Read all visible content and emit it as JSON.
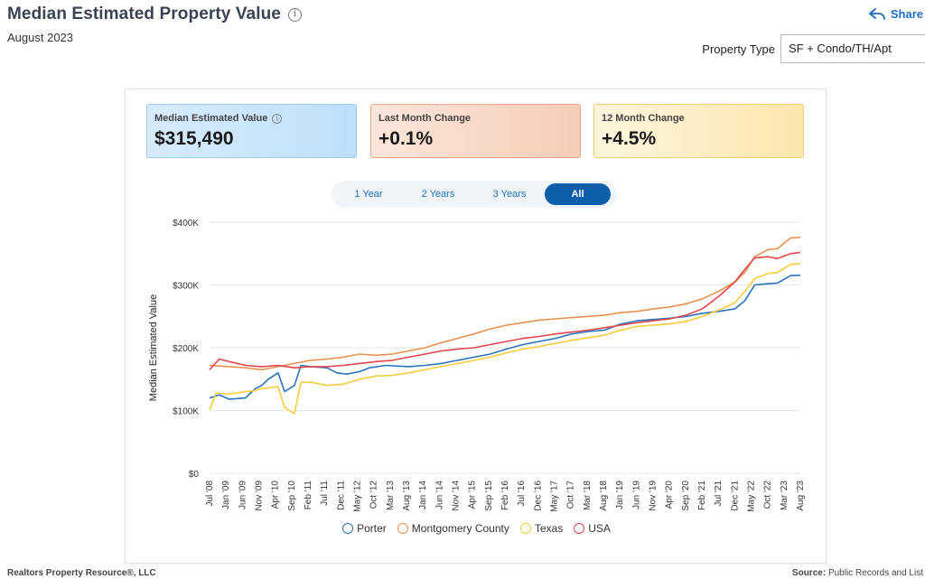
{
  "header": {
    "title": "Median Estimated Property Value",
    "subtitle": "August 2023",
    "share_label": "Share",
    "property_type_label": "Property Type",
    "property_type_value": "SF + Condo/TH/Apt"
  },
  "stats": {
    "median_label": "Median Estimated Value",
    "median_value": "$315,490",
    "last_month_label": "Last Month Change",
    "last_month_value": "+0.1%",
    "twelve_month_label": "12 Month Change",
    "twelve_month_value": "+4.5%"
  },
  "range_buttons": [
    "1 Year",
    "2 Years",
    "3 Years",
    "All"
  ],
  "range_selected": "All",
  "footer": {
    "left": "Realtors Property Resource®, LLC",
    "source_label": "Source:",
    "source_value": "Public Records and List"
  },
  "colors": {
    "Porter": "#2a74bd",
    "Montgomery County": "#e8914f",
    "Texas": "#f4cd3c",
    "USA": "#e2474b",
    "active_tab": "#0d5fab"
  },
  "chart_data": {
    "type": "line",
    "title": "",
    "xlabel": "",
    "ylabel": "Median Estimated Value",
    "ylim": [
      0,
      400000
    ],
    "yticks": [
      0,
      100000,
      200000,
      300000,
      400000
    ],
    "ytick_labels": [
      "$0",
      "$100K",
      "$200K",
      "$300K",
      "$400K"
    ],
    "x_start": "2008-07",
    "x_end": "2023-08",
    "xtick_labels": [
      "Jul '08",
      "Jan '09",
      "Jun '09",
      "Nov '09",
      "Apr '10",
      "Sep '10",
      "Feb '11",
      "Jul '11",
      "Dec '11",
      "May '12",
      "Oct '12",
      "Mar '13",
      "Aug '13",
      "Jan '14",
      "Jun '14",
      "Nov '14",
      "Apr '15",
      "Sep '15",
      "Feb '16",
      "Jul '16",
      "Dec '16",
      "May '17",
      "Oct '17",
      "Mar '18",
      "Aug '18",
      "Jan '19",
      "Jun '19",
      "Nov '19",
      "Apr '20",
      "Sep '20",
      "Feb '21",
      "Jul '21",
      "Dec '21",
      "May '22",
      "Oct '22",
      "Mar '23",
      "Aug '23"
    ],
    "grid": true,
    "legend_position": "bottom",
    "series": [
      {
        "name": "Porter",
        "points": [
          [
            "2008-07",
            120000
          ],
          [
            "2008-10",
            125000
          ],
          [
            "2009-01",
            118000
          ],
          [
            "2009-06",
            120000
          ],
          [
            "2009-09",
            135000
          ],
          [
            "2009-11",
            140000
          ],
          [
            "2010-01",
            150000
          ],
          [
            "2010-04",
            160000
          ],
          [
            "2010-06",
            130000
          ],
          [
            "2010-09",
            140000
          ],
          [
            "2010-11",
            172000
          ],
          [
            "2011-02",
            170000
          ],
          [
            "2011-07",
            168000
          ],
          [
            "2011-10",
            160000
          ],
          [
            "2012-01",
            158000
          ],
          [
            "2012-05",
            162000
          ],
          [
            "2012-08",
            168000
          ],
          [
            "2013-01",
            172000
          ],
          [
            "2013-08",
            170000
          ],
          [
            "2014-01",
            172000
          ],
          [
            "2014-06",
            175000
          ],
          [
            "2014-11",
            180000
          ],
          [
            "2015-04",
            185000
          ],
          [
            "2015-09",
            190000
          ],
          [
            "2016-02",
            198000
          ],
          [
            "2016-07",
            205000
          ],
          [
            "2016-12",
            210000
          ],
          [
            "2017-05",
            215000
          ],
          [
            "2017-10",
            222000
          ],
          [
            "2018-03",
            226000
          ],
          [
            "2018-08",
            228000
          ],
          [
            "2019-01",
            238000
          ],
          [
            "2019-06",
            243000
          ],
          [
            "2019-11",
            245000
          ],
          [
            "2020-04",
            247000
          ],
          [
            "2020-09",
            250000
          ],
          [
            "2021-02",
            255000
          ],
          [
            "2021-07",
            258000
          ],
          [
            "2021-12",
            262000
          ],
          [
            "2022-03",
            275000
          ],
          [
            "2022-06",
            300000
          ],
          [
            "2022-10",
            302000
          ],
          [
            "2023-01",
            303000
          ],
          [
            "2023-05",
            315000
          ],
          [
            "2023-08",
            315490
          ]
        ]
      },
      {
        "name": "Montgomery County",
        "points": [
          [
            "2008-07",
            172000
          ],
          [
            "2009-01",
            170000
          ],
          [
            "2009-06",
            168000
          ],
          [
            "2009-11",
            165000
          ],
          [
            "2010-04",
            170000
          ],
          [
            "2010-09",
            175000
          ],
          [
            "2011-02",
            180000
          ],
          [
            "2011-07",
            182000
          ],
          [
            "2011-12",
            185000
          ],
          [
            "2012-05",
            190000
          ],
          [
            "2012-10",
            188000
          ],
          [
            "2013-03",
            190000
          ],
          [
            "2013-08",
            195000
          ],
          [
            "2014-01",
            200000
          ],
          [
            "2014-06",
            208000
          ],
          [
            "2014-11",
            215000
          ],
          [
            "2015-04",
            222000
          ],
          [
            "2015-09",
            230000
          ],
          [
            "2016-02",
            236000
          ],
          [
            "2016-07",
            240000
          ],
          [
            "2016-12",
            244000
          ],
          [
            "2017-05",
            246000
          ],
          [
            "2017-10",
            248000
          ],
          [
            "2018-03",
            250000
          ],
          [
            "2018-08",
            252000
          ],
          [
            "2019-01",
            256000
          ],
          [
            "2019-06",
            258000
          ],
          [
            "2019-11",
            262000
          ],
          [
            "2020-04",
            265000
          ],
          [
            "2020-09",
            270000
          ],
          [
            "2021-02",
            278000
          ],
          [
            "2021-07",
            290000
          ],
          [
            "2021-12",
            305000
          ],
          [
            "2022-03",
            320000
          ],
          [
            "2022-06",
            345000
          ],
          [
            "2022-10",
            356000
          ],
          [
            "2023-01",
            358000
          ],
          [
            "2023-05",
            375000
          ],
          [
            "2023-08",
            376000
          ]
        ]
      },
      {
        "name": "Texas",
        "points": [
          [
            "2008-07",
            101000
          ],
          [
            "2008-09",
            128000
          ],
          [
            "2009-01",
            126000
          ],
          [
            "2009-06",
            130000
          ],
          [
            "2009-09",
            132000
          ],
          [
            "2009-11",
            135000
          ],
          [
            "2010-04",
            138000
          ],
          [
            "2010-06",
            105000
          ],
          [
            "2010-09",
            95000
          ],
          [
            "2010-11",
            145000
          ],
          [
            "2011-02",
            145000
          ],
          [
            "2011-07",
            140000
          ],
          [
            "2011-12",
            142000
          ],
          [
            "2012-05",
            150000
          ],
          [
            "2012-10",
            155000
          ],
          [
            "2013-03",
            156000
          ],
          [
            "2013-08",
            160000
          ],
          [
            "2014-01",
            165000
          ],
          [
            "2014-06",
            170000
          ],
          [
            "2014-11",
            175000
          ],
          [
            "2015-04",
            180000
          ],
          [
            "2015-09",
            185000
          ],
          [
            "2016-02",
            192000
          ],
          [
            "2016-07",
            198000
          ],
          [
            "2016-12",
            202000
          ],
          [
            "2017-05",
            207000
          ],
          [
            "2017-10",
            212000
          ],
          [
            "2018-03",
            216000
          ],
          [
            "2018-08",
            220000
          ],
          [
            "2019-01",
            228000
          ],
          [
            "2019-06",
            234000
          ],
          [
            "2019-11",
            236000
          ],
          [
            "2020-04",
            238000
          ],
          [
            "2020-09",
            242000
          ],
          [
            "2021-02",
            250000
          ],
          [
            "2021-07",
            260000
          ],
          [
            "2021-12",
            272000
          ],
          [
            "2022-03",
            290000
          ],
          [
            "2022-06",
            310000
          ],
          [
            "2022-10",
            318000
          ],
          [
            "2023-01",
            320000
          ],
          [
            "2023-05",
            333000
          ],
          [
            "2023-08",
            334000
          ]
        ]
      },
      {
        "name": "USA",
        "points": [
          [
            "2008-07",
            165000
          ],
          [
            "2008-10",
            182000
          ],
          [
            "2009-01",
            178000
          ],
          [
            "2009-06",
            172000
          ],
          [
            "2009-11",
            170000
          ],
          [
            "2010-04",
            172000
          ],
          [
            "2010-09",
            168000
          ],
          [
            "2011-02",
            170000
          ],
          [
            "2011-07",
            170000
          ],
          [
            "2011-12",
            172000
          ],
          [
            "2012-05",
            175000
          ],
          [
            "2012-10",
            178000
          ],
          [
            "2013-03",
            180000
          ],
          [
            "2013-08",
            185000
          ],
          [
            "2014-01",
            190000
          ],
          [
            "2014-06",
            195000
          ],
          [
            "2014-11",
            198000
          ],
          [
            "2015-04",
            200000
          ],
          [
            "2015-09",
            205000
          ],
          [
            "2016-02",
            210000
          ],
          [
            "2016-07",
            215000
          ],
          [
            "2016-12",
            218000
          ],
          [
            "2017-05",
            222000
          ],
          [
            "2017-10",
            225000
          ],
          [
            "2018-03",
            228000
          ],
          [
            "2018-08",
            232000
          ],
          [
            "2019-01",
            236000
          ],
          [
            "2019-06",
            240000
          ],
          [
            "2019-11",
            243000
          ],
          [
            "2020-04",
            246000
          ],
          [
            "2020-09",
            252000
          ],
          [
            "2021-02",
            262000
          ],
          [
            "2021-07",
            282000
          ],
          [
            "2021-12",
            305000
          ],
          [
            "2022-03",
            325000
          ],
          [
            "2022-06",
            343000
          ],
          [
            "2022-10",
            345000
          ],
          [
            "2023-01",
            342000
          ],
          [
            "2023-05",
            350000
          ],
          [
            "2023-08",
            352000
          ]
        ]
      }
    ]
  }
}
